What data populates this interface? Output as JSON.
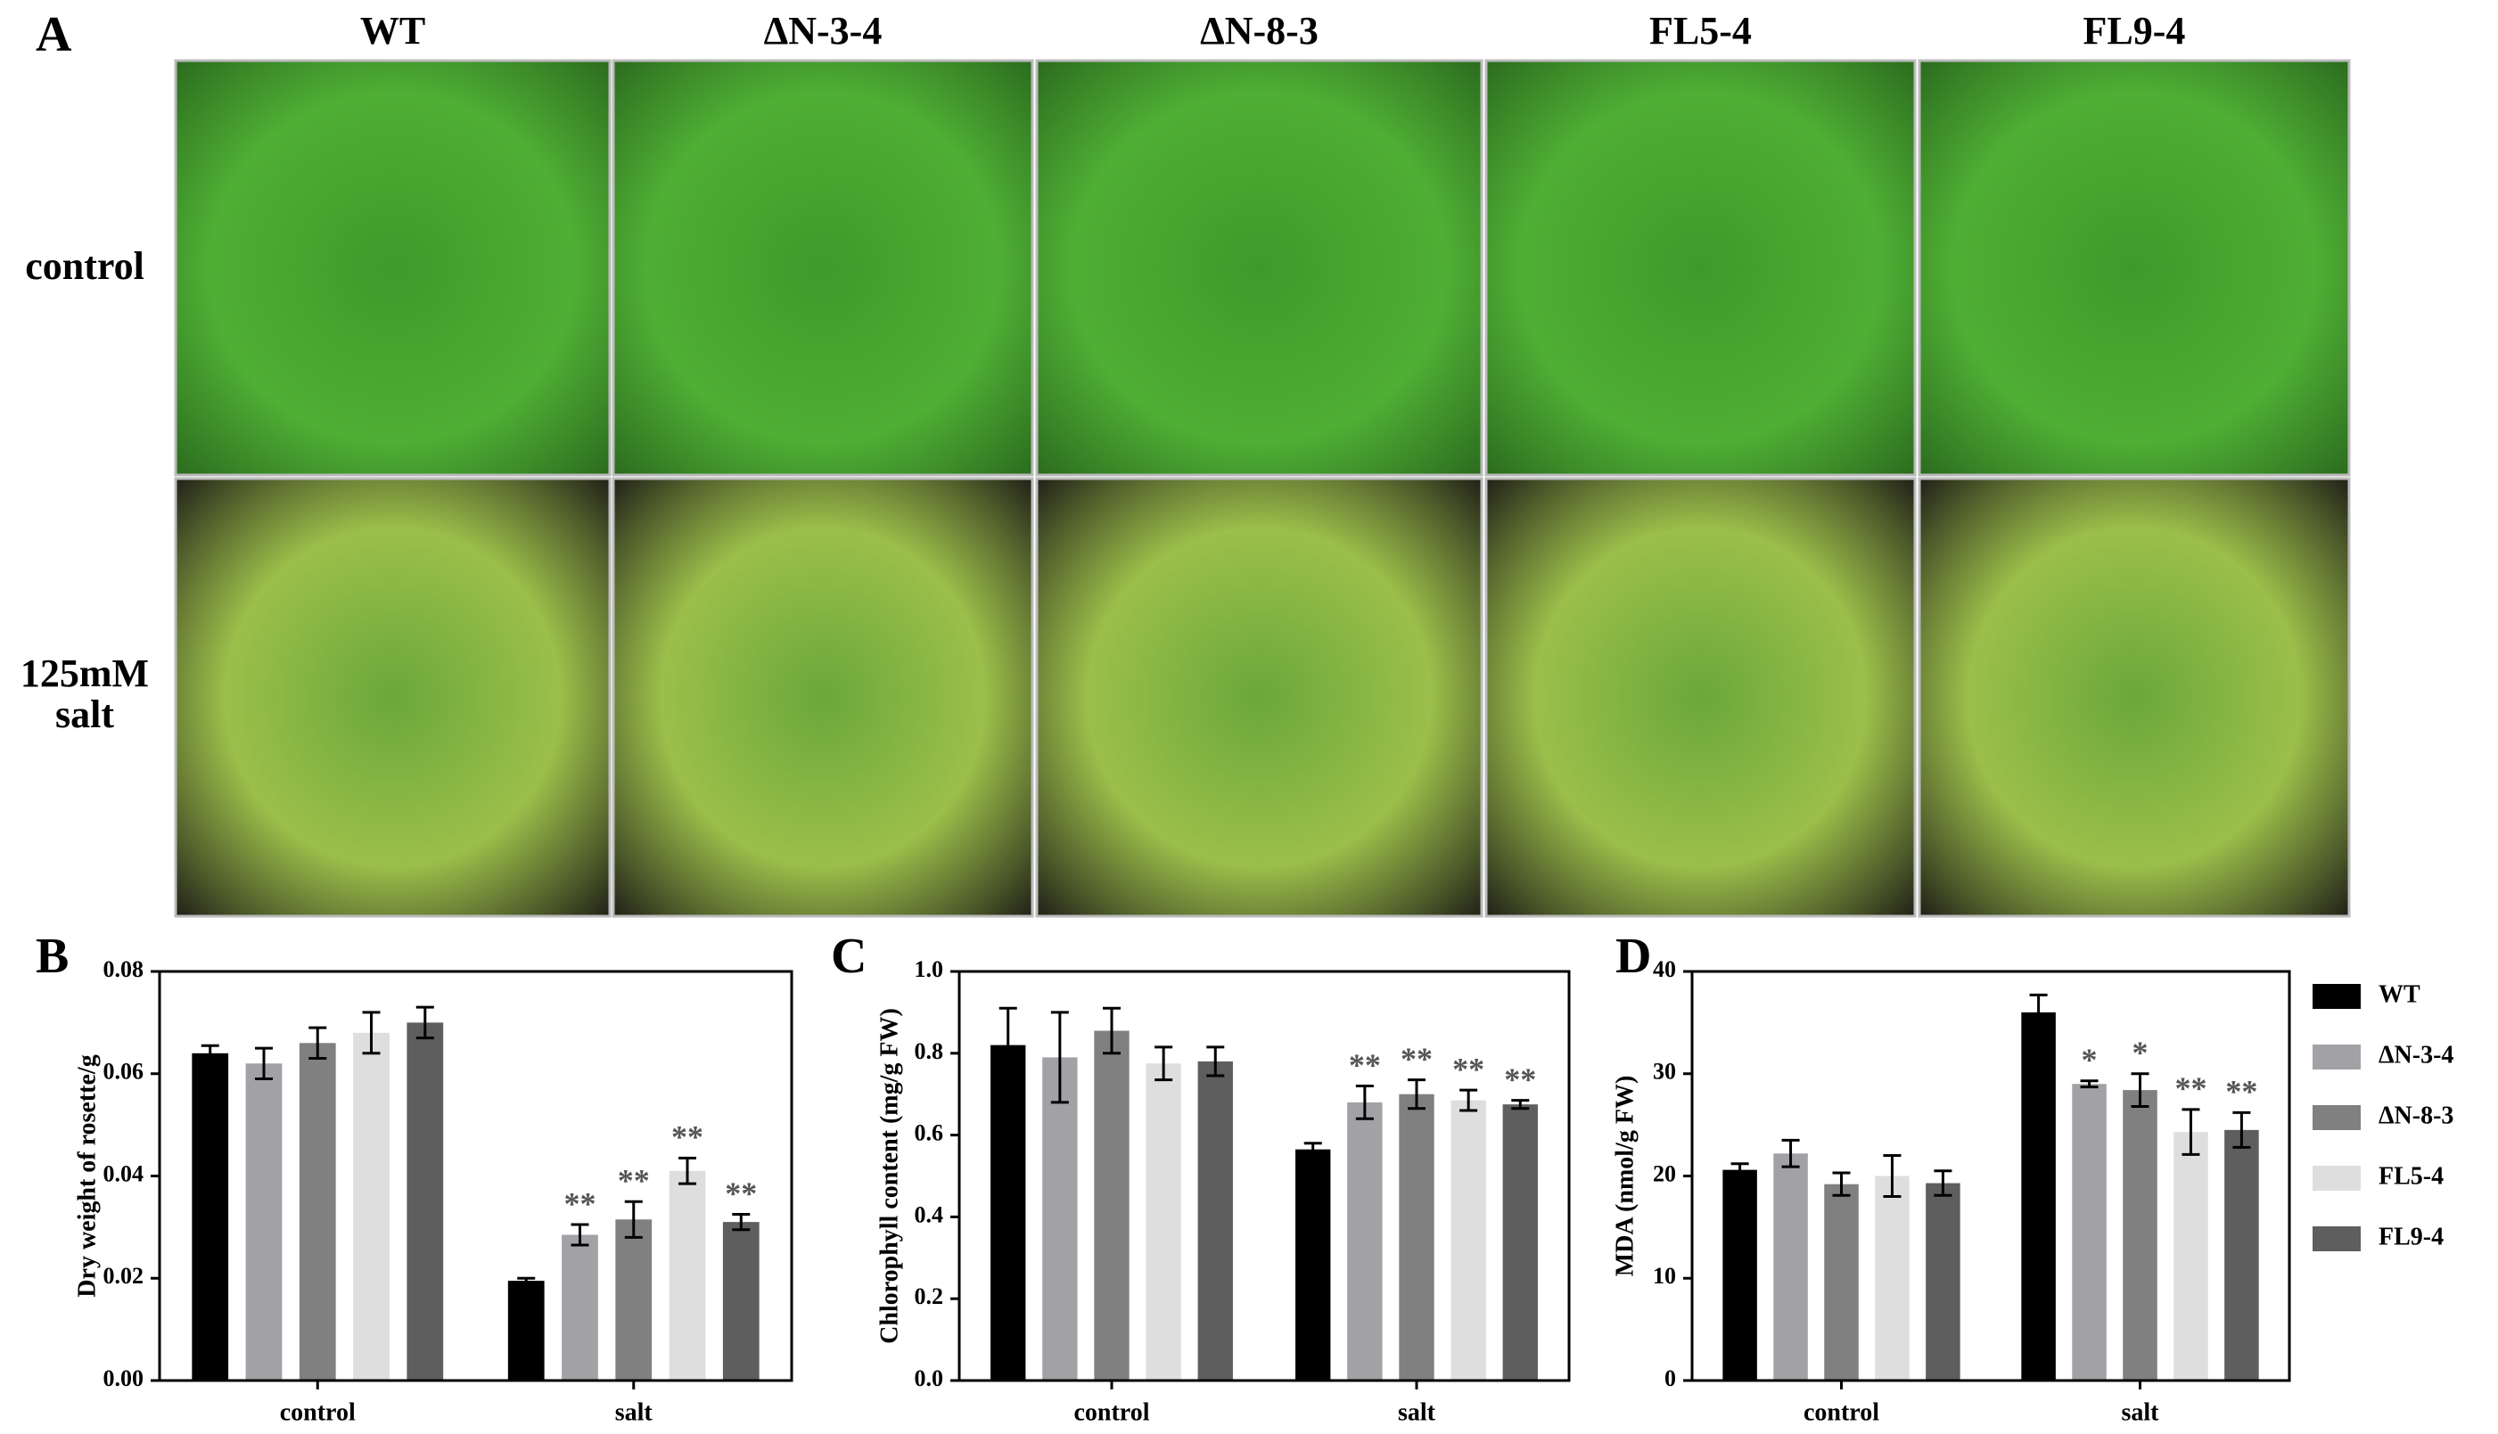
{
  "panel_a": {
    "label": "A",
    "columns": [
      "WT",
      "ΔN-3-4",
      "ΔN-8-3",
      "FL5-4",
      "FL9-4"
    ],
    "rows": [
      "control",
      "125mM salt"
    ]
  },
  "chart_data": [
    {
      "type": "bar",
      "panel": "B",
      "ylabel": "Dry weight of rosette/g",
      "categories": [
        "control",
        "salt"
      ],
      "ylim": [
        0,
        0.08
      ],
      "yticks": [
        {
          "value": 0,
          "label": "0.00"
        },
        0.02,
        0.04,
        0.06,
        0.08
      ],
      "series": [
        {
          "color": "#000000",
          "values": [
            0.064,
            0.0195
          ],
          "errors": [
            0.0015,
            0.0005
          ],
          "annotations": [
            null,
            null
          ]
        },
        {
          "color": "#a2a2a6",
          "values": [
            0.062,
            0.0285
          ],
          "errors": [
            0.003,
            0.002
          ],
          "annotations": [
            null,
            "**"
          ]
        },
        {
          "color": "#808080",
          "values": [
            0.066,
            0.0315
          ],
          "errors": [
            0.003,
            0.0035
          ],
          "annotations": [
            null,
            "**"
          ]
        },
        {
          "color": "#dedede",
          "values": [
            0.068,
            0.041
          ],
          "errors": [
            0.004,
            0.0025
          ],
          "annotations": [
            null,
            "**"
          ]
        },
        {
          "color": "#5e5e5e",
          "values": [
            0.07,
            0.031
          ],
          "errors": [
            0.003,
            0.0015
          ],
          "annotations": [
            null,
            "**"
          ]
        }
      ]
    },
    {
      "type": "bar",
      "panel": "C",
      "ylabel": "Chlorophyll content (mg/g FW)",
      "categories": [
        "control",
        "salt"
      ],
      "ylim": [
        0,
        1
      ],
      "yticks": [
        {
          "value": 0,
          "label": "0.0"
        },
        0.2,
        0.4,
        0.6,
        0.8,
        {
          "value": 1,
          "label": "1.0"
        }
      ],
      "series": [
        {
          "color": "#000000",
          "values": [
            0.82,
            0.565
          ],
          "errors": [
            0.09,
            0.015
          ],
          "annotations": [
            null,
            null
          ]
        },
        {
          "color": "#a2a2a6",
          "values": [
            0.79,
            0.68
          ],
          "errors": [
            0.11,
            0.04
          ],
          "annotations": [
            null,
            "**"
          ]
        },
        {
          "color": "#808080",
          "values": [
            0.855,
            0.7
          ],
          "errors": [
            0.055,
            0.035
          ],
          "annotations": [
            null,
            "**"
          ]
        },
        {
          "color": "#dedede",
          "values": [
            0.775,
            0.685
          ],
          "errors": [
            0.04,
            0.025
          ],
          "annotations": [
            null,
            "**"
          ]
        },
        {
          "color": "#5e5e5e",
          "values": [
            0.78,
            0.675
          ],
          "errors": [
            0.035,
            0.01
          ],
          "annotations": [
            null,
            "**"
          ]
        }
      ]
    },
    {
      "type": "bar",
      "panel": "D",
      "ylabel": "MDA (nmol/g FW)",
      "categories": [
        "control",
        "salt"
      ],
      "ylim": [
        0,
        40
      ],
      "yticks": [
        0,
        10,
        20,
        30,
        40
      ],
      "legend": "right",
      "series": [
        {
          "name": "WT",
          "color": "#000000",
          "values": [
            20.6,
            36
          ],
          "errors": [
            0.6,
            1.7
          ],
          "annotations": [
            null,
            null
          ]
        },
        {
          "name": "ΔN-3-4",
          "color": "#a2a2a6",
          "values": [
            22.2,
            29
          ],
          "errors": [
            1.3,
            0.3
          ],
          "annotations": [
            null,
            "*"
          ]
        },
        {
          "name": "ΔN-8-3",
          "color": "#808080",
          "values": [
            19.2,
            28.4
          ],
          "errors": [
            1.1,
            1.6
          ],
          "annotations": [
            null,
            "*"
          ]
        },
        {
          "name": "FL5-4",
          "color": "#dedede",
          "values": [
            20,
            24.3
          ],
          "errors": [
            2,
            2.2
          ],
          "annotations": [
            null,
            "**"
          ]
        },
        {
          "name": "FL9-4",
          "color": "#5e5e5e",
          "values": [
            19.3,
            24.5
          ],
          "errors": [
            1.2,
            1.7
          ],
          "annotations": [
            null,
            "**"
          ]
        }
      ]
    }
  ]
}
